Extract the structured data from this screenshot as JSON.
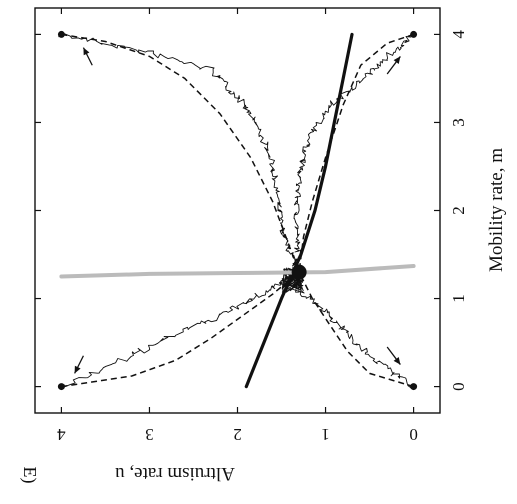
{
  "chart_data": {
    "type": "line",
    "panel_label": "E)",
    "xlabel": "Mobility rate, m",
    "ylabel": "Altruism rate, u",
    "xlim": [
      -0.3,
      4.3
    ],
    "ylim": [
      -0.3,
      4.3
    ],
    "x_ticks": [
      0,
      1,
      2,
      3,
      4
    ],
    "y_ticks": [
      0,
      1,
      2,
      3,
      4
    ],
    "x_tick_labels": [
      "0",
      "1",
      "2",
      "3",
      "4"
    ],
    "y_tick_labels": [
      "0",
      "1",
      "2",
      "3",
      "4"
    ],
    "grid": false,
    "legend": "none",
    "rotation_deg": 90,
    "start_points": [
      {
        "m": 0,
        "u": 0
      },
      {
        "m": 0,
        "u": 4
      },
      {
        "m": 4,
        "u": 0
      },
      {
        "m": 4,
        "u": 4
      }
    ],
    "equilibrium_point": {
      "m": 1.3,
      "u": 1.3
    },
    "series": [
      {
        "style": "dashed",
        "color": "#111111",
        "points": [
          [
            4,
            4
          ],
          [
            3.92,
            3.5
          ],
          [
            3.75,
            3.0
          ],
          [
            3.5,
            2.6
          ],
          [
            3.1,
            2.2
          ],
          [
            2.6,
            1.85
          ],
          [
            2.1,
            1.6
          ],
          [
            1.7,
            1.45
          ],
          [
            1.3,
            1.3
          ]
        ]
      },
      {
        "style": "dashed",
        "color": "#111111",
        "points": [
          [
            4,
            0
          ],
          [
            3.9,
            0.3
          ],
          [
            3.65,
            0.6
          ],
          [
            3.2,
            0.8
          ],
          [
            2.6,
            1.0
          ],
          [
            2.1,
            1.15
          ],
          [
            1.7,
            1.25
          ],
          [
            1.3,
            1.3
          ]
        ]
      },
      {
        "style": "dashed",
        "color": "#111111",
        "points": [
          [
            0,
            4
          ],
          [
            0.12,
            3.2
          ],
          [
            0.3,
            2.7
          ],
          [
            0.55,
            2.3
          ],
          [
            0.8,
            1.95
          ],
          [
            1.05,
            1.6
          ],
          [
            1.3,
            1.3
          ]
        ]
      },
      {
        "style": "dashed",
        "color": "#111111",
        "points": [
          [
            0,
            0
          ],
          [
            0.15,
            0.5
          ],
          [
            0.4,
            0.75
          ],
          [
            0.7,
            0.95
          ],
          [
            1.0,
            1.15
          ],
          [
            1.3,
            1.3
          ]
        ]
      },
      {
        "style": "noisy",
        "color": "#111111",
        "points": [
          [
            4,
            4
          ],
          [
            3.8,
            3.05
          ],
          [
            3.6,
            2.3
          ],
          [
            3.3,
            2.0
          ],
          [
            3.0,
            1.8
          ],
          [
            2.6,
            1.62
          ],
          [
            2.2,
            1.55
          ],
          [
            1.8,
            1.5
          ],
          [
            1.5,
            1.4
          ],
          [
            1.3,
            1.3
          ]
        ]
      },
      {
        "style": "noisy",
        "color": "#111111",
        "points": [
          [
            4,
            0
          ],
          [
            3.75,
            0.3
          ],
          [
            3.5,
            0.55
          ],
          [
            3.2,
            0.95
          ],
          [
            2.8,
            1.2
          ],
          [
            2.4,
            1.3
          ],
          [
            2.0,
            1.33
          ],
          [
            1.6,
            1.32
          ],
          [
            1.3,
            1.3
          ]
        ]
      },
      {
        "style": "noisy",
        "color": "#111111",
        "points": [
          [
            0,
            4
          ],
          [
            0.3,
            3.3
          ],
          [
            0.55,
            2.8
          ],
          [
            0.85,
            2.1
          ],
          [
            1.1,
            1.65
          ],
          [
            1.3,
            1.3
          ]
        ]
      },
      {
        "style": "noisy",
        "color": "#111111",
        "points": [
          [
            0,
            0
          ],
          [
            0.3,
            0.45
          ],
          [
            0.6,
            0.75
          ],
          [
            0.85,
            1.0
          ],
          [
            1.1,
            1.3
          ],
          [
            1.3,
            1.3
          ]
        ]
      },
      {
        "style": "thick",
        "color": "#111111",
        "points": [
          [
            0,
            1.9
          ],
          [
            0.5,
            1.7
          ],
          [
            1.0,
            1.5
          ],
          [
            1.5,
            1.28
          ],
          [
            2.0,
            1.12
          ],
          [
            2.5,
            1.0
          ],
          [
            3.0,
            0.9
          ],
          [
            3.5,
            0.8
          ],
          [
            4.0,
            0.7
          ]
        ]
      },
      {
        "style": "gray",
        "color": "#bbbbbb",
        "points": [
          [
            1.37,
            0
          ],
          [
            1.3,
            1.0
          ],
          [
            1.29,
            2.0
          ],
          [
            1.28,
            3.0
          ],
          [
            1.25,
            4.0
          ]
        ]
      }
    ],
    "arrows": [
      {
        "from": [
          0.35,
          3.75
        ],
        "to": [
          0.15,
          3.85
        ]
      },
      {
        "from": [
          3.65,
          3.65
        ],
        "to": [
          3.85,
          3.75
        ]
      },
      {
        "from": [
          0.45,
          0.3
        ],
        "to": [
          0.25,
          0.15
        ]
      },
      {
        "from": [
          3.55,
          0.3
        ],
        "to": [
          3.75,
          0.15
        ]
      }
    ]
  }
}
